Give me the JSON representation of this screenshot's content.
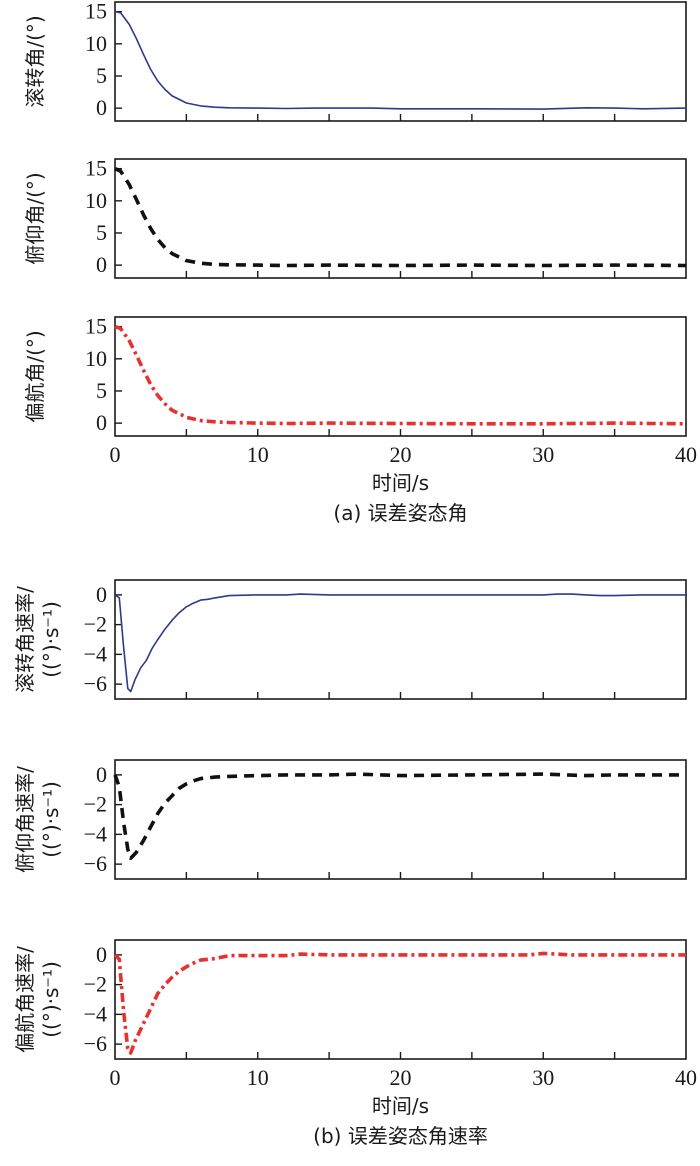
{
  "chart_data": [
    {
      "type": "line",
      "group": "a",
      "ylabel": "滚转角/(°)",
      "ylim": [
        -2,
        16.5
      ],
      "yticks": [
        0,
        5,
        10,
        15
      ],
      "xlim": [
        0,
        40
      ],
      "xticks": [
        0,
        5,
        10,
        15,
        20,
        25,
        30,
        35,
        40
      ],
      "show_xtick_labels": false,
      "series": [
        {
          "name": "roll",
          "color": "#2b3a8f",
          "style": "solid",
          "x": [
            0,
            0.4,
            1,
            1.5,
            2,
            2.5,
            3,
            3.5,
            4,
            5,
            6,
            7,
            8,
            10,
            12,
            14,
            16,
            18,
            20,
            25,
            30,
            33,
            35,
            37,
            40
          ],
          "y": [
            15,
            14.8,
            13,
            10.8,
            8.3,
            6.0,
            4.2,
            2.9,
            1.9,
            0.8,
            0.35,
            0.15,
            0.05,
            0,
            -0.05,
            0,
            0,
            0,
            -0.1,
            -0.1,
            -0.15,
            0.05,
            0,
            -0.1,
            0
          ]
        }
      ]
    },
    {
      "type": "line",
      "group": "a",
      "ylabel": "俯仰角/(°)",
      "ylim": [
        -2,
        16.5
      ],
      "yticks": [
        0,
        5,
        10,
        15
      ],
      "xlim": [
        0,
        40
      ],
      "xticks": [
        0,
        5,
        10,
        15,
        20,
        25,
        30,
        35,
        40
      ],
      "show_xtick_labels": false,
      "series": [
        {
          "name": "pitch",
          "color": "#111111",
          "style": "dashed",
          "x": [
            0,
            0.4,
            1,
            1.5,
            2,
            2.5,
            3,
            3.5,
            4,
            5,
            6,
            7,
            8,
            10,
            12,
            15,
            20,
            25,
            30,
            35,
            40
          ],
          "y": [
            15,
            14.6,
            12.5,
            10.2,
            7.8,
            5.7,
            4.0,
            2.7,
            1.8,
            0.7,
            0.3,
            0.1,
            0.05,
            0,
            -0.05,
            0,
            -0.05,
            0,
            -0.05,
            0,
            -0.05
          ]
        }
      ]
    },
    {
      "type": "line",
      "group": "a",
      "ylabel": "偏航角/(°)",
      "ylim": [
        -2,
        16.5
      ],
      "yticks": [
        0,
        5,
        10,
        15
      ],
      "xlim": [
        0,
        40
      ],
      "xticks": [
        0,
        5,
        10,
        15,
        20,
        25,
        30,
        35,
        40
      ],
      "show_xtick_labels": true,
      "xtick_labels": [
        "0",
        "",
        "10",
        "",
        "20",
        "",
        "30",
        "",
        "40"
      ],
      "xlabel": "时间/s",
      "caption": "(a) 误差姿态角",
      "series": [
        {
          "name": "yaw",
          "color": "#e8312e",
          "style": "dashdot",
          "x": [
            0,
            0.4,
            1,
            1.5,
            2,
            2.5,
            3,
            3.5,
            4,
            5,
            6,
            7,
            8,
            10,
            12,
            15,
            20,
            25,
            30,
            35,
            40
          ],
          "y": [
            15,
            14.7,
            12.8,
            10.6,
            8.2,
            6.0,
            4.3,
            3.0,
            2.0,
            0.9,
            0.4,
            0.2,
            0.1,
            0,
            -0.05,
            0,
            -0.05,
            -0.1,
            -0.1,
            0,
            -0.1
          ]
        }
      ]
    },
    {
      "type": "line",
      "group": "b",
      "ylabel": "滚转角速率/",
      "ylabel2": "((°)·s⁻¹)",
      "ylim": [
        -7,
        1
      ],
      "yticks": [
        0,
        -2,
        -4,
        -6
      ],
      "ytick_labels": [
        "0",
        "−2",
        "−4",
        "−6"
      ],
      "xlim": [
        0,
        40
      ],
      "xticks": [
        0,
        5,
        10,
        15,
        20,
        25,
        30,
        35,
        40
      ],
      "show_xtick_labels": false,
      "series": [
        {
          "name": "roll-rate",
          "color": "#2b3a8f",
          "style": "solid",
          "x": [
            0,
            0.3,
            0.6,
            0.9,
            1.1,
            1.4,
            1.8,
            2.2,
            2.6,
            3,
            3.5,
            4,
            4.5,
            5,
            5.5,
            6,
            6.5,
            7,
            8,
            10,
            12,
            13,
            15,
            20,
            25,
            30,
            31,
            32,
            33,
            34,
            35,
            37,
            40
          ],
          "y": [
            0,
            -0.2,
            -3.5,
            -6.3,
            -6.5,
            -5.7,
            -4.9,
            -4.4,
            -3.6,
            -3.0,
            -2.3,
            -1.7,
            -1.2,
            -0.8,
            -0.55,
            -0.35,
            -0.3,
            -0.2,
            -0.05,
            0,
            0,
            0.05,
            0,
            0,
            0,
            0,
            0.05,
            0.05,
            0,
            -0.05,
            -0.05,
            0,
            0
          ]
        }
      ]
    },
    {
      "type": "line",
      "group": "b",
      "ylabel": "俯仰角速率/",
      "ylabel2": "((°)·s⁻¹)",
      "ylim": [
        -7,
        1
      ],
      "yticks": [
        0,
        -2,
        -4,
        -6
      ],
      "ytick_labels": [
        "0",
        "−2",
        "−4",
        "−6"
      ],
      "xlim": [
        0,
        40
      ],
      "xticks": [
        0,
        5,
        10,
        15,
        20,
        25,
        30,
        35,
        40
      ],
      "show_xtick_labels": false,
      "series": [
        {
          "name": "pitch-rate",
          "color": "#111111",
          "style": "dashed",
          "x": [
            0,
            0.3,
            0.6,
            0.9,
            1.1,
            1.5,
            2,
            2.5,
            3,
            3.5,
            4,
            4.5,
            5,
            5.5,
            6,
            6.5,
            7,
            8,
            10,
            12,
            15,
            17,
            20,
            25,
            30,
            33,
            35,
            40
          ],
          "y": [
            0,
            -0.8,
            -3.2,
            -5.0,
            -5.6,
            -5.2,
            -4.4,
            -3.5,
            -2.6,
            -1.9,
            -1.4,
            -0.9,
            -0.6,
            -0.4,
            -0.25,
            -0.2,
            -0.15,
            -0.1,
            -0.05,
            0,
            0,
            0.05,
            -0.05,
            0,
            0.05,
            -0.05,
            0,
            0
          ]
        }
      ]
    },
    {
      "type": "line",
      "group": "b",
      "ylabel": "偏航角速率/",
      "ylabel2": "((°)·s⁻¹)",
      "ylim": [
        -7,
        1
      ],
      "yticks": [
        0,
        -2,
        -4,
        -6
      ],
      "ytick_labels": [
        "0",
        "−2",
        "−4",
        "−6"
      ],
      "xlim": [
        0,
        40
      ],
      "xticks": [
        0,
        5,
        10,
        15,
        20,
        25,
        30,
        35,
        40
      ],
      "show_xtick_labels": true,
      "xtick_labels": [
        "0",
        "",
        "10",
        "",
        "20",
        "",
        "30",
        "",
        "40"
      ],
      "xlabel": "时间/s",
      "caption": "(b) 误差姿态角速率",
      "series": [
        {
          "name": "yaw-rate",
          "color": "#e8312e",
          "style": "dashdot",
          "x": [
            0,
            0.3,
            0.6,
            0.9,
            1.1,
            1.4,
            1.8,
            2.2,
            2.6,
            3,
            3.5,
            4,
            4.5,
            5,
            5.5,
            6,
            7,
            8,
            10,
            12,
            13,
            15,
            20,
            25,
            29,
            30,
            31,
            32,
            35,
            40
          ],
          "y": [
            0,
            -0.3,
            -3.8,
            -6.3,
            -6.6,
            -5.8,
            -5.0,
            -4.2,
            -3.4,
            -2.6,
            -2.0,
            -1.5,
            -1.1,
            -0.8,
            -0.55,
            -0.35,
            -0.25,
            -0.05,
            -0.05,
            -0.05,
            0.05,
            0,
            0,
            0,
            0,
            0.1,
            0.05,
            0,
            0,
            0
          ]
        }
      ]
    }
  ]
}
